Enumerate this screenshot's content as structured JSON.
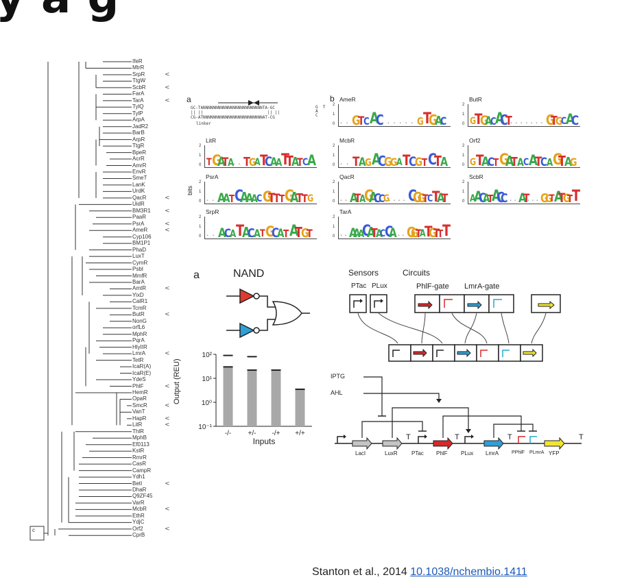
{
  "slide": {
    "title_fragment": "y a g",
    "citation_text": "Stanton et al., 2014",
    "citation_link": "10.1038/nchembio.1411",
    "link_color": "#1a5ab8"
  },
  "tree": {
    "leaves": [
      "IfeR",
      "MtrR",
      "SrpR",
      "TtgW",
      "ScbR",
      "FarA",
      "TarA",
      "TylQ",
      "TylP",
      "ArpA",
      "JadR2",
      "BarB",
      "ArpR",
      "TtgR",
      "BpeR",
      "AcrR",
      "AmrR",
      "EnvR",
      "SmeT",
      "LanK",
      "UrdK",
      "QacR",
      "UidR",
      "BM3R1",
      "PaaR",
      "PsrA",
      "AmeR",
      "Cyp106",
      "BM1P1",
      "PhaD",
      "LuxT",
      "CymR",
      "PsbI",
      "MmfR",
      "BarA",
      "AmtR",
      "YixD",
      "CalR1",
      "TcmR",
      "ButR",
      "NonG",
      "orfL6",
      "MphR",
      "PqrA",
      "HlyIIR",
      "LmrA",
      "TetR",
      "IcaR(A)",
      "IcaR(E)",
      "YdeS",
      "PhlF",
      "HemR",
      "OpaR",
      "SmcR",
      "VanT",
      "HapR",
      "LitR",
      "ThlR",
      "MphB",
      "Ef0113",
      "KstR",
      "RmrR",
      "CasR",
      "CampR",
      "Ydh1",
      "BetI",
      "DhaR",
      "Q9ZF45",
      "VarR",
      "McbR",
      "EthR",
      "YdjC",
      "Orf2",
      "CprB"
    ],
    "marked": [
      "SrpR",
      "ScbR",
      "TarA",
      "QacR",
      "BM3R1",
      "PsrA",
      "AmeR",
      "AmtR",
      "ButR",
      "LmrA",
      "PhlF",
      "SmcR",
      "HapR",
      "LitR",
      "BetI",
      "McbR",
      "Orf2"
    ],
    "mark_symbol": "<",
    "root_label": "c"
  },
  "motifs": {
    "panel_a_letter": "a",
    "panel_b_letter": "b",
    "operator_lines": [
      "GC-TANNNNNNNNNNNNNNNNNNNNNNNNTA-GC",
      "|| ||                          || ||",
      "CG-ATNNNNNNNNNNNNNNNNNNNNNNNNAT-CG"
    ],
    "operator_hairpin": "G  T\nA\nC",
    "linker_label": "linker",
    "y_axis_label": "bits",
    "y_ticks": [
      "2",
      "1",
      "0"
    ],
    "logos": [
      {
        "name": "LitR",
        "pattern": "TGATA..TGATCAATTATCA"
      },
      {
        "name": "PsrA",
        "pattern": "..AATCAAACGTTTGATTG"
      },
      {
        "name": "SrpR",
        "pattern": "..ACATACATGCATATGT"
      },
      {
        "name": "AmeR",
        "pattern": "..GTCAC......GTGAC"
      },
      {
        "name": "McbR",
        "pattern": "..TAGACGGATCGTCTA"
      },
      {
        "name": "QacR",
        "pattern": "..ATAGACCG....CGGTCTAT"
      },
      {
        "name": "TarA",
        "pattern": "..AAACATACCA...GGTATGTTT"
      },
      {
        "name": "ButR",
        "pattern": "GTGACACT.......GTGCAC"
      },
      {
        "name": "Orf2",
        "pattern": "GTACTGATACATCAGTAG"
      },
      {
        "name": "ScbR",
        "pattern": "AACATACC...AT...GGTATGTT"
      }
    ],
    "base_colors": {
      "A": "#3aa84a",
      "C": "#3b5bd6",
      "G": "#e6a21c",
      "T": "#d62f2f",
      "dot": "#9a9a9a"
    }
  },
  "nand": {
    "panel_letter": "a",
    "gate_label": "NAND",
    "top_input_color": "#e03a2f",
    "bottom_input_color": "#2f9fd8",
    "ylabel": "Output (REU)",
    "xlabel": "Inputs",
    "y_ticks": [
      "10²",
      "10¹",
      "10⁰",
      "10⁻¹"
    ]
  },
  "chart_data": {
    "type": "bar",
    "categories": [
      "-/-",
      "+/-",
      "-/+",
      "+/+"
    ],
    "values": [
      30,
      22,
      22,
      3.5
    ],
    "target_markers": [
      90,
      80,
      null,
      null
    ],
    "xlabel": "Inputs",
    "ylabel": "Output (REU)",
    "ylim": [
      0.1,
      100
    ],
    "yscale": "log",
    "bar_color": "#a8a8a8"
  },
  "circuit": {
    "sensors_label": "Sensors",
    "circuits_label": "Circuits",
    "sensor_parts": [
      "PTac",
      "PLux"
    ],
    "gate_labels": [
      "PhlF-gate",
      "LmrA-gate"
    ],
    "inputs": [
      "IPTG",
      "AHL"
    ],
    "genes": [
      "LacI",
      "LuxR",
      "PTac",
      "PhlF",
      "PLux",
      "LmrA",
      "PPhlF",
      "PLmrA",
      "YFP"
    ],
    "terminator_symbol": "T",
    "colors": {
      "lacI": "#c4c4c4",
      "luxR": "#c4c4c4",
      "phlF": "#d8282a",
      "lmrA": "#2f9fd8",
      "yfp": "#f2e530",
      "red_promoter": "#d8282a",
      "cyan_promoter": "#27a8c8"
    }
  }
}
